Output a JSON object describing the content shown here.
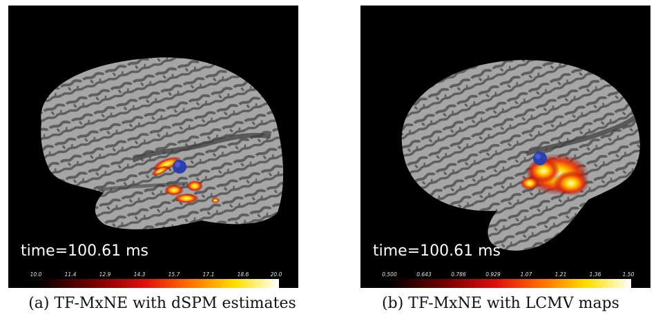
{
  "colors": {
    "background": "#000000",
    "cortex_light": "#a6a6a6",
    "cortex_dark": "#5e5e5e",
    "dipole": "#2a3fb0",
    "colormap": [
      "#000000",
      "#7a0000",
      "#e01010",
      "#ff7a00",
      "#ffe000",
      "#ffffff"
    ]
  },
  "panels": [
    {
      "time_label": "time=100.61 ms",
      "colorbar_ticks": [
        "10.0",
        "11.4",
        "12.9",
        "14.3",
        "15.7",
        "17.1",
        "18.6",
        "20.0"
      ],
      "caption": "(a) TF-MxNE with dSPM estimates"
    },
    {
      "time_label": "time=100.61 ms",
      "colorbar_ticks": [
        "0.500",
        "0.643",
        "0.786",
        "0.929",
        "1.07",
        "1.21",
        "1.36",
        "1.50"
      ],
      "caption": "(b) TF-MxNE with LCMV maps"
    }
  ]
}
